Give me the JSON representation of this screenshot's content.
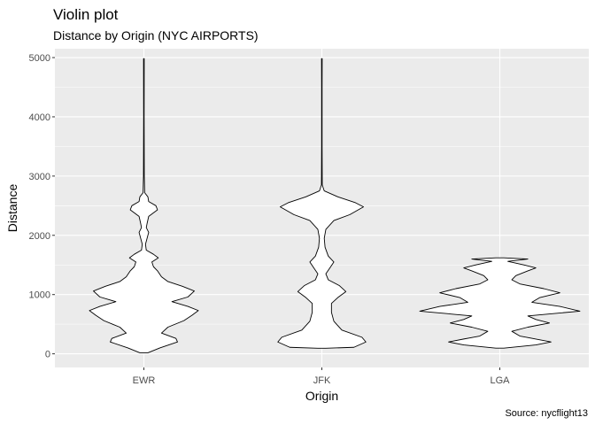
{
  "chart_data": {
    "type": "violin",
    "title": "Violin plot",
    "subtitle": "Distance by Origin (NYC AIRPORTS)",
    "xlabel": "Origin",
    "ylabel": "Distance",
    "caption": "Source: nycflight13",
    "categories": [
      "EWR",
      "JFK",
      "LGA"
    ],
    "ylim": [
      -230,
      5150
    ],
    "yticks": [
      0,
      1000,
      2000,
      3000,
      4000,
      5000
    ],
    "ytick_labels": [
      "0",
      "1000",
      "2000",
      "3000",
      "4000",
      "5000"
    ],
    "grid": true,
    "background": "#ebebeb",
    "violin_fill": "#ffffff",
    "violin_stroke": "#000000",
    "violins": [
      {
        "category": "EWR",
        "min": 17,
        "max": 4983,
        "density": [
          [
            17,
            0.05
          ],
          [
            100,
            0.2
          ],
          [
            200,
            0.42
          ],
          [
            260,
            0.4
          ],
          [
            350,
            0.22
          ],
          [
            450,
            0.3
          ],
          [
            560,
            0.5
          ],
          [
            650,
            0.6
          ],
          [
            730,
            0.68
          ],
          [
            800,
            0.55
          ],
          [
            880,
            0.35
          ],
          [
            960,
            0.55
          ],
          [
            1060,
            0.63
          ],
          [
            1140,
            0.48
          ],
          [
            1220,
            0.3
          ],
          [
            1300,
            0.22
          ],
          [
            1400,
            0.17
          ],
          [
            1470,
            0.12
          ],
          [
            1550,
            0.1
          ],
          [
            1620,
            0.18
          ],
          [
            1680,
            0.12
          ],
          [
            1750,
            0.03
          ],
          [
            1850,
            0.02
          ],
          [
            1950,
            0.04
          ],
          [
            2050,
            0.06
          ],
          [
            2130,
            0.03
          ],
          [
            2200,
            0.04
          ],
          [
            2320,
            0.06
          ],
          [
            2430,
            0.17
          ],
          [
            2500,
            0.15
          ],
          [
            2570,
            0.06
          ],
          [
            2650,
            0.05
          ],
          [
            2720,
            0.01
          ],
          [
            3000,
            0.005
          ],
          [
            4000,
            0.003
          ],
          [
            4800,
            0.004
          ],
          [
            4983,
            0.004
          ]
        ]
      },
      {
        "category": "JFK",
        "min": 94,
        "max": 4983,
        "density": [
          [
            94,
            0.05
          ],
          [
            110,
            0.4
          ],
          [
            200,
            0.55
          ],
          [
            280,
            0.5
          ],
          [
            400,
            0.25
          ],
          [
            550,
            0.15
          ],
          [
            700,
            0.12
          ],
          [
            850,
            0.12
          ],
          [
            950,
            0.2
          ],
          [
            1050,
            0.3
          ],
          [
            1150,
            0.22
          ],
          [
            1250,
            0.08
          ],
          [
            1350,
            0.05
          ],
          [
            1450,
            0.1
          ],
          [
            1550,
            0.15
          ],
          [
            1650,
            0.08
          ],
          [
            1800,
            0.04
          ],
          [
            1950,
            0.03
          ],
          [
            2100,
            0.05
          ],
          [
            2250,
            0.15
          ],
          [
            2350,
            0.35
          ],
          [
            2480,
            0.52
          ],
          [
            2550,
            0.42
          ],
          [
            2650,
            0.2
          ],
          [
            2750,
            0.03
          ],
          [
            2850,
            0.005
          ],
          [
            3500,
            0.003
          ],
          [
            4500,
            0.003
          ],
          [
            4983,
            0.004
          ]
        ]
      },
      {
        "category": "LGA",
        "min": 96,
        "max": 1620,
        "density": [
          [
            96,
            0.05
          ],
          [
            150,
            0.45
          ],
          [
            200,
            0.64
          ],
          [
            250,
            0.45
          ],
          [
            300,
            0.25
          ],
          [
            380,
            0.15
          ],
          [
            450,
            0.35
          ],
          [
            520,
            0.62
          ],
          [
            580,
            0.45
          ],
          [
            640,
            0.35
          ],
          [
            720,
            1.0
          ],
          [
            800,
            0.75
          ],
          [
            870,
            0.4
          ],
          [
            950,
            0.5
          ],
          [
            1030,
            0.75
          ],
          [
            1100,
            0.55
          ],
          [
            1180,
            0.25
          ],
          [
            1250,
            0.15
          ],
          [
            1320,
            0.2
          ],
          [
            1400,
            0.35
          ],
          [
            1450,
            0.45
          ],
          [
            1500,
            0.3
          ],
          [
            1560,
            0.1
          ],
          [
            1600,
            0.35
          ],
          [
            1620,
            0.05
          ]
        ]
      }
    ]
  }
}
